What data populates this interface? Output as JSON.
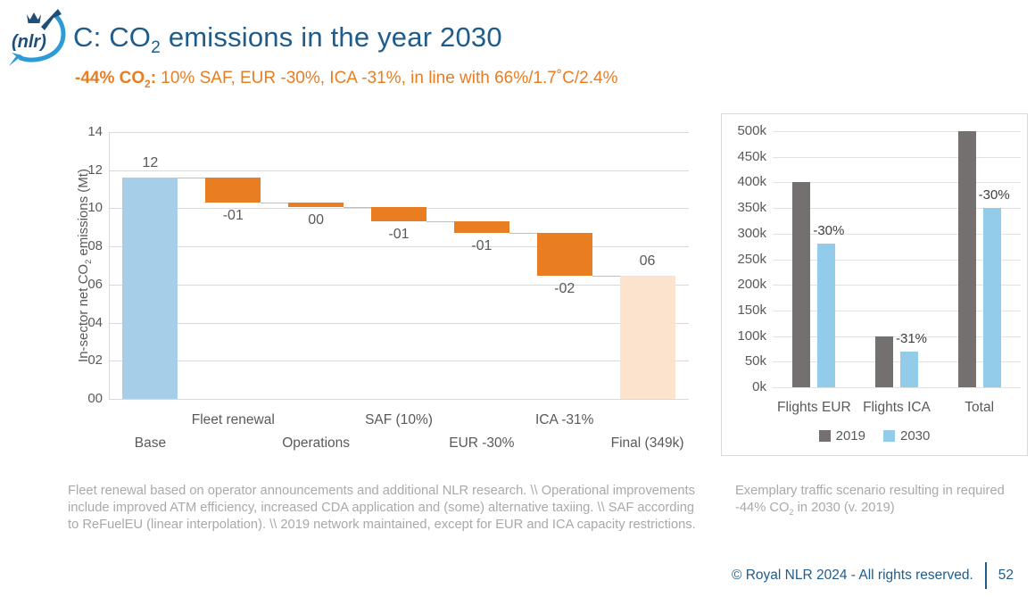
{
  "header": {
    "logo_text": "(nlr)",
    "title": {
      "pre": "C: CO",
      "sub": "2",
      "post": " emissions in the year 2030"
    },
    "subtitle": {
      "bold_pre": "-44% CO",
      "bold_sub": "2",
      "bold_post": ":",
      "rest": "  10% SAF, EUR -30%, ICA -31%, in line with 66%/1.7˚C/2.4%"
    }
  },
  "colors": {
    "title_blue": "#1E5C8B",
    "accent_orange": "#E87D22",
    "waterfall_blue": "#A6CEE9",
    "waterfall_orange": "#E87D22",
    "waterfall_peach": "#FBE3CD",
    "bar_gray": "#747070",
    "bar_blue": "#93CBEB",
    "grid_gray": "#D9D9D9",
    "connector_gray": "#BFBFBF",
    "axis_text_gray": "#595959",
    "annotation_gray": "#3F3F3F",
    "note_gray": "#A9A9A9",
    "footer_blue": "#1F5C8C",
    "logo_navy": "#1F4E79",
    "logo_lightblue": "#2E9BD6"
  },
  "chart_data": [
    {
      "type": "waterfall",
      "ylabel": {
        "pre": "In-sector net CO",
        "sub": "2",
        "post": " emissions (Mt)"
      },
      "ylim": [
        0,
        14
      ],
      "yticks": [
        0,
        2,
        4,
        6,
        8,
        10,
        12,
        14
      ],
      "ytick_labels": [
        "00",
        "02",
        "04",
        "06",
        "08",
        "10",
        "12",
        "14"
      ],
      "grid": true,
      "bars": [
        {
          "label": "Base",
          "start": 0,
          "end": 11.6,
          "value_label": "12",
          "color_key": "waterfall_blue",
          "label_pos": "above",
          "label_row": 2
        },
        {
          "label": "Fleet renewal",
          "start": 11.6,
          "end": 10.3,
          "value_label": "-01",
          "color_key": "waterfall_orange",
          "label_pos": "below",
          "label_row": 1
        },
        {
          "label": "Operations",
          "start": 10.3,
          "end": 10.05,
          "value_label": "00",
          "color_key": "waterfall_orange",
          "label_pos": "below",
          "label_row": 2
        },
        {
          "label": "SAF (10%)",
          "start": 10.05,
          "end": 9.3,
          "value_label": "-01",
          "color_key": "waterfall_orange",
          "label_pos": "below",
          "label_row": 1
        },
        {
          "label": "EUR -30%",
          "start": 9.3,
          "end": 8.7,
          "value_label": "-01",
          "color_key": "waterfall_orange",
          "label_pos": "below",
          "label_row": 2
        },
        {
          "label": "ICA -31%",
          "start": 8.7,
          "end": 6.45,
          "value_label": "-02",
          "color_key": "waterfall_orange",
          "label_pos": "below",
          "label_row": 1
        },
        {
          "label": "Final (349k)",
          "start": 0,
          "end": 6.45,
          "value_label": "06",
          "color_key": "waterfall_peach",
          "label_pos": "above",
          "label_row": 2
        }
      ]
    },
    {
      "type": "bar",
      "categories": [
        "Flights EUR",
        "Flights ICA",
        "Total"
      ],
      "series": [
        {
          "name": "2019",
          "color_key": "bar_gray",
          "values": [
            400000,
            100000,
            500000
          ]
        },
        {
          "name": "2030",
          "color_key": "bar_blue",
          "values": [
            280000,
            70000,
            350000
          ]
        }
      ],
      "annotations": [
        "-30%",
        "-31%",
        "-30%"
      ],
      "ylim": [
        0,
        500000
      ],
      "yticks": [
        0,
        50000,
        100000,
        150000,
        200000,
        250000,
        300000,
        350000,
        400000,
        450000,
        500000
      ],
      "ytick_labels": [
        "0k",
        "50k",
        "100k",
        "150k",
        "200k",
        "250k",
        "300k",
        "350k",
        "400k",
        "450k",
        "500k"
      ],
      "grid": true,
      "legend_position": "bottom"
    }
  ],
  "notes": {
    "left": "Fleet renewal based on operator announcements and additional NLR research. \\\\ Operational improvements include improved ATM efficiency, increased CDA application and (some) alternative taxiing. \\\\ SAF according to ReFuelEU (linear interpolation). \\\\ 2019 network maintained, except for EUR and ICA capacity restrictions.",
    "right": {
      "pre": "Exemplary traffic scenario resulting in required -44% CO",
      "sub": "2",
      "post": " in 2030 (v. 2019)"
    }
  },
  "footer": {
    "copyright": "© Royal NLR 2024 - All rights reserved.",
    "page": "52"
  }
}
